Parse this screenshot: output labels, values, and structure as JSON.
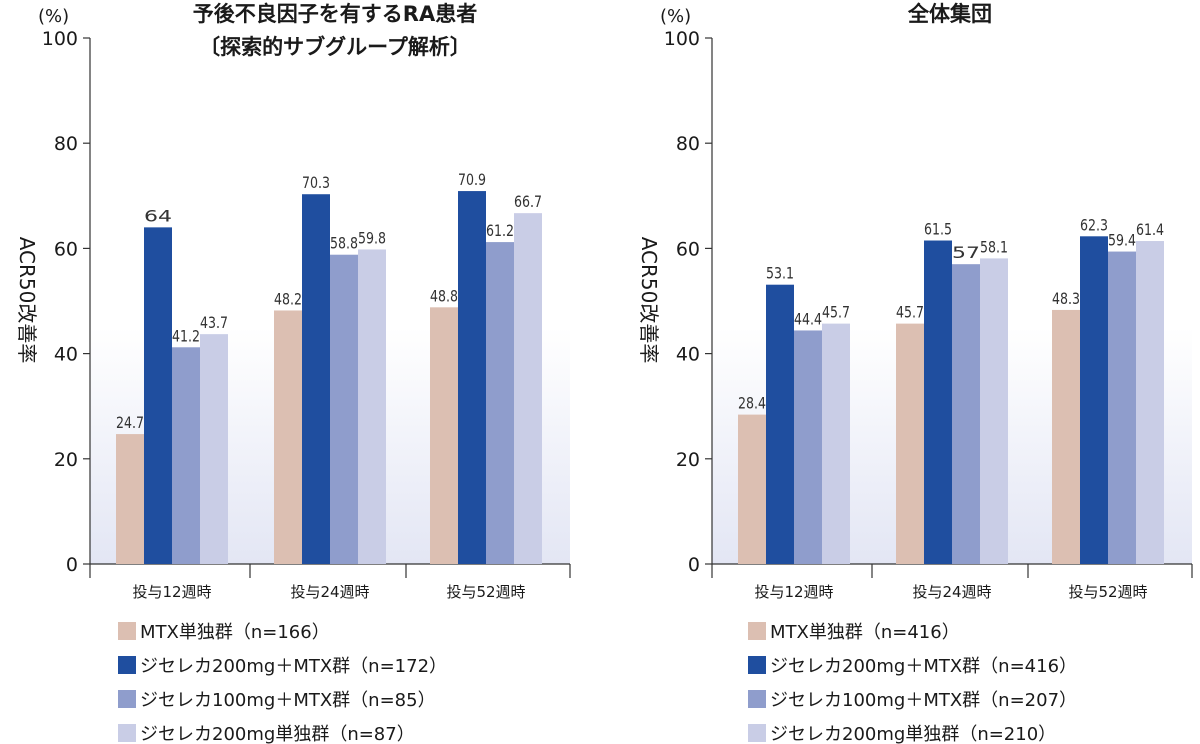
{
  "chart_data": [
    {
      "type": "bar",
      "title": "予後不良因子を有するRA患者",
      "subtitle": "〔探索的サブグループ解析〕",
      "unit": "(%)",
      "ylabel": "ACR50改善率",
      "xlabel": "",
      "ylim": [
        0,
        100
      ],
      "yticks": [
        0,
        20,
        40,
        60,
        80,
        100
      ],
      "grid": false,
      "legend_position": "bottom-left",
      "categories": [
        "投与12週時",
        "投与24週時",
        "投与52週時"
      ],
      "series": [
        {
          "name": "MTX単独群（n=166）",
          "color": "#dcbfb2",
          "values": [
            24.7,
            48.2,
            48.8
          ]
        },
        {
          "name": "ジセレカ200mg＋MTX群（n=172）",
          "color": "#1f4e9f",
          "values": [
            64.0,
            70.3,
            70.9
          ]
        },
        {
          "name": "ジセレカ100mg＋MTX群（n=85）",
          "color": "#8f9dcc",
          "values": [
            41.2,
            58.8,
            61.2
          ]
        },
        {
          "name": "ジセレカ200mg単独群（n=87）",
          "color": "#c9cde6",
          "values": [
            43.7,
            59.8,
            66.7
          ]
        }
      ]
    },
    {
      "type": "bar",
      "title": "全体集団",
      "subtitle": "",
      "unit": "(%)",
      "ylabel": "ACR50改善率",
      "xlabel": "",
      "ylim": [
        0,
        100
      ],
      "yticks": [
        0,
        20,
        40,
        60,
        80,
        100
      ],
      "grid": false,
      "legend_position": "bottom-left",
      "categories": [
        "投与12週時",
        "投与24週時",
        "投与52週時"
      ],
      "series": [
        {
          "name": "MTX単独群（n=416）",
          "color": "#dcbfb2",
          "values": [
            28.4,
            45.7,
            48.3
          ]
        },
        {
          "name": "ジセレカ200mg＋MTX群（n=416）",
          "color": "#1f4e9f",
          "values": [
            53.1,
            61.5,
            62.3
          ]
        },
        {
          "name": "ジセレカ100mg＋MTX群（n=207）",
          "color": "#8f9dcc",
          "values": [
            44.4,
            57.0,
            59.4
          ]
        },
        {
          "name": "ジセレカ200mg単独群（n=210）",
          "color": "#c9cde6",
          "values": [
            45.7,
            58.1,
            61.4
          ]
        }
      ]
    }
  ]
}
